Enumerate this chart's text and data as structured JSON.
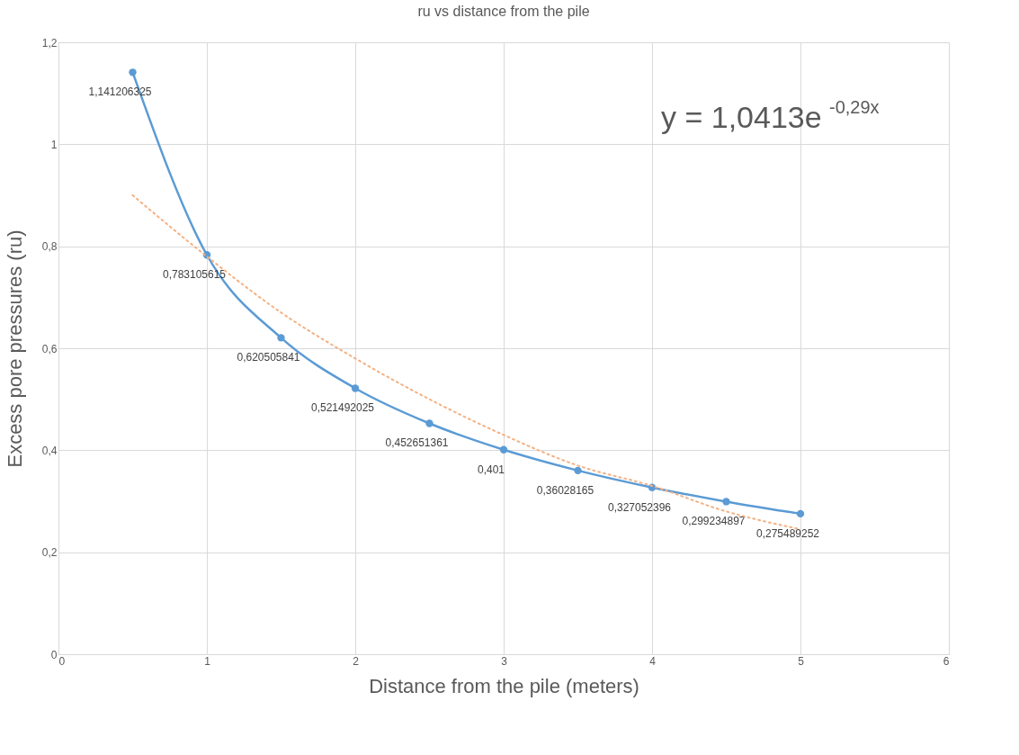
{
  "chart_data": {
    "type": "line",
    "title": "ru vs distance from the pile",
    "xlabel": "Distance from the pile (meters)",
    "ylabel": "Excess pore pressures (ru)",
    "x": [
      0.5,
      1,
      1.5,
      2,
      2.5,
      3,
      3.5,
      4,
      4.5,
      5
    ],
    "series": [
      {
        "color": "#5b9bd5",
        "marker": "circle",
        "line_style": "solid",
        "values": [
          1.141206325,
          0.783105615,
          0.620505841,
          0.521492025,
          0.452651361,
          0.401,
          0.36028165,
          0.327052396,
          0.299234897,
          0.275489252
        ],
        "value_labels": [
          "1,141206325",
          "0,783105615",
          "0,620505841",
          "0,521492025",
          "0,452651361",
          "0,401",
          "0,36028165",
          "0,327052396",
          "0,299234897",
          "0,275489252"
        ]
      },
      {
        "type": "line",
        "color": "#f4b183",
        "marker": "none",
        "line_style": "dotted",
        "x": [
          0.5,
          1,
          1.5,
          2,
          2.5,
          3,
          3.5,
          4,
          4.5,
          5
        ],
        "values": [
          0.9,
          0.78,
          0.67,
          0.58,
          0.5,
          0.43,
          0.37,
          0.33,
          0.28,
          0.245
        ]
      }
    ],
    "xlim": [
      0,
      6
    ],
    "xticks": [
      0,
      1,
      2,
      3,
      4,
      5,
      6
    ],
    "ylim": [
      0,
      1.2
    ],
    "yticks": [
      0,
      {
        "value": 0.2,
        "label": "0,2"
      },
      {
        "value": 0.4,
        "label": "0,4"
      },
      {
        "value": 0.6,
        "label": "0,6"
      },
      {
        "value": 0.8,
        "label": "0,8"
      },
      1,
      {
        "value": 1.2,
        "label": "1,2"
      }
    ],
    "grid": true,
    "annotations": [
      "y = 1,0413e$^{-0,29x}$"
    ]
  }
}
